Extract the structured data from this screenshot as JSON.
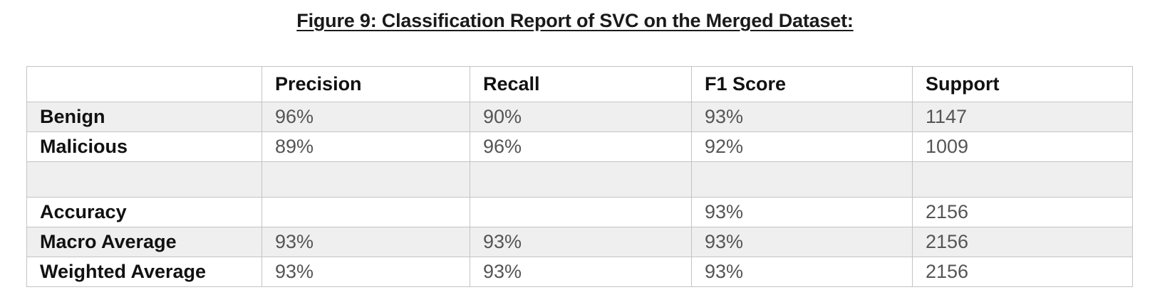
{
  "caption": "Figure 9: Classification Report of SVC on the Merged Dataset:",
  "table": {
    "headers": [
      "",
      "Precision",
      "Recall",
      "F1 Score",
      "Support"
    ],
    "rows": [
      {
        "label": "Benign",
        "cells": [
          "96%",
          "90%",
          "93%",
          "1147"
        ]
      },
      {
        "label": "Malicious",
        "cells": [
          "89%",
          "96%",
          "92%",
          "1009"
        ]
      },
      {
        "label": "",
        "cells": [
          "",
          "",
          "",
          ""
        ]
      },
      {
        "label": "Accuracy",
        "cells": [
          "",
          "",
          "93%",
          "2156"
        ]
      },
      {
        "label": "Macro Average",
        "cells": [
          "93%",
          "93%",
          "93%",
          "2156"
        ]
      },
      {
        "label": "Weighted Average",
        "cells": [
          "93%",
          "93%",
          "93%",
          "2156"
        ]
      }
    ]
  }
}
